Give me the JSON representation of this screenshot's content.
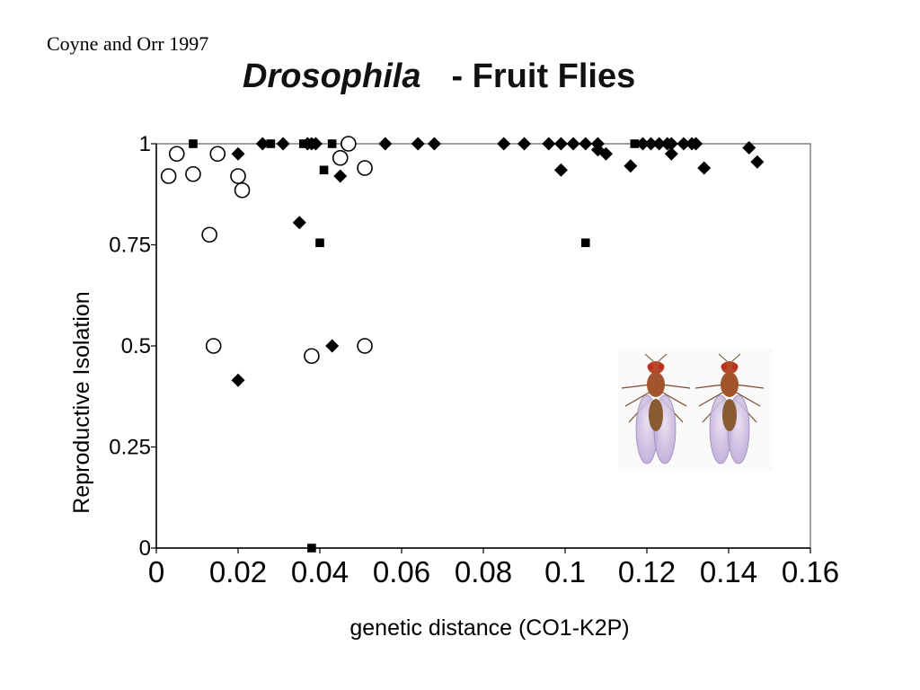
{
  "citation": "Coyne and Orr 1997",
  "title": {
    "genus": "Drosophila",
    "rest": "- Fruit Flies"
  },
  "chart_data": {
    "type": "scatter",
    "title": "Drosophila - Fruit Flies",
    "xlabel": "genetic distance (CO1-K2P)",
    "ylabel": "Reproductive Isolation",
    "xlim": [
      0,
      0.16
    ],
    "ylim": [
      0,
      1
    ],
    "xticks": [
      0,
      0.02,
      0.04,
      0.06,
      0.08,
      0.1,
      0.12,
      0.14,
      0.16
    ],
    "xtick_labels": [
      "0",
      "0.02",
      "0.04",
      "0.06",
      "0.08",
      "0.1",
      "0.12",
      "0.14",
      "0.16"
    ],
    "yticks": [
      0,
      0.25,
      0.5,
      0.75,
      1
    ],
    "ytick_labels": [
      "0",
      "0.25",
      "0.5",
      "0.75",
      "1"
    ],
    "grid": false,
    "series": [
      {
        "marker": "open-circle",
        "x": [
          0.003,
          0.005,
          0.009,
          0.013,
          0.014,
          0.015,
          0.02,
          0.021,
          0.038,
          0.045,
          0.047,
          0.051,
          0.051
        ],
        "y": [
          0.92,
          0.975,
          0.925,
          0.775,
          0.5,
          0.975,
          0.92,
          0.885,
          0.475,
          0.965,
          1.0,
          0.94,
          0.5
        ]
      },
      {
        "marker": "filled-diamond",
        "x": [
          0.02,
          0.02,
          0.026,
          0.031,
          0.035,
          0.037,
          0.038,
          0.039,
          0.043,
          0.045,
          0.056,
          0.064,
          0.068,
          0.085,
          0.09,
          0.096,
          0.099,
          0.099,
          0.102,
          0.105,
          0.108,
          0.108,
          0.11,
          0.116,
          0.119,
          0.121,
          0.123,
          0.125,
          0.126,
          0.126,
          0.129,
          0.131,
          0.132,
          0.134,
          0.145,
          0.147
        ],
        "y": [
          0.975,
          0.415,
          1.0,
          1.0,
          0.805,
          1.0,
          1.0,
          1.0,
          0.5,
          0.92,
          1.0,
          1.0,
          1.0,
          1.0,
          1.0,
          1.0,
          0.935,
          1.0,
          1.0,
          1.0,
          1.0,
          0.985,
          0.975,
          0.945,
          1.0,
          1.0,
          1.0,
          1.0,
          1.0,
          0.975,
          1.0,
          1.0,
          1.0,
          0.94,
          0.99,
          0.955
        ]
      },
      {
        "marker": "filled-square",
        "x": [
          0.009,
          0.028,
          0.036,
          0.038,
          0.04,
          0.041,
          0.043,
          0.105,
          0.117
        ],
        "y": [
          1.0,
          1.0,
          1.0,
          0.0,
          0.755,
          0.935,
          1.0,
          0.755,
          1.0
        ]
      }
    ]
  },
  "image": {
    "description": "two fruit flies",
    "icon": "fruit-fly-illustration"
  }
}
